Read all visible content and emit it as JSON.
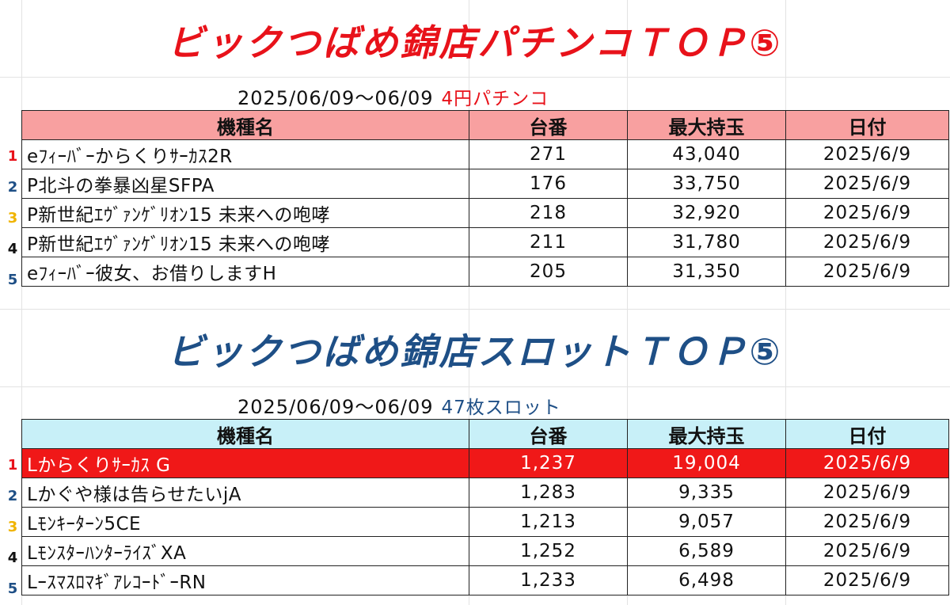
{
  "pachinko": {
    "title": "ビックつばめ錦店パチンコＴＯＰ⑤",
    "period": "2025/06/09～06/09",
    "kind": "4円パチンコ",
    "headers": [
      "機種名",
      "台番",
      "最大持玉",
      "日付"
    ],
    "rank_colors": [
      "#e8121a",
      "#1e4f86",
      "#f0b400",
      "#111111",
      "#1e4f86"
    ],
    "rows": [
      {
        "rank": "1",
        "name": "eﾌｨｰﾊﾞｰからくりｻｰｶｽ2R",
        "number": "271",
        "balls": "43,040",
        "date": "2025/6/9"
      },
      {
        "rank": "2",
        "name": "P北斗の拳暴凶星SFPA",
        "number": "176",
        "balls": "33,750",
        "date": "2025/6/9"
      },
      {
        "rank": "3",
        "name": "P新世紀ｴｳﾞｧﾝｹﾞﾘｵﾝ15 未来への咆哮",
        "number": "218",
        "balls": "32,920",
        "date": "2025/6/9"
      },
      {
        "rank": "4",
        "name": "P新世紀ｴｳﾞｧﾝｹﾞﾘｵﾝ15 未来への咆哮",
        "number": "211",
        "balls": "31,780",
        "date": "2025/6/9"
      },
      {
        "rank": "5",
        "name": "eﾌｨｰﾊﾞｰ彼女、お借りしますH",
        "number": "205",
        "balls": "31,350",
        "date": "2025/6/9"
      }
    ]
  },
  "slot": {
    "title": "ビックつばめ錦店スロットＴＯＰ⑤",
    "period": "2025/06/09～06/09",
    "kind": "47枚スロット",
    "headers": [
      "機種名",
      "台番",
      "最大持玉",
      "日付"
    ],
    "rank_colors": [
      "#e8121a",
      "#1e4f86",
      "#f0b400",
      "#111111",
      "#1e4f86"
    ],
    "rows": [
      {
        "rank": "1",
        "name": "Lからくりｻｰｶｽ G",
        "number": "1,237",
        "balls": "19,004",
        "date": "2025/6/9"
      },
      {
        "rank": "2",
        "name": "Lかぐや様は告らせたいjA",
        "number": "1,283",
        "balls": "9,335",
        "date": "2025/6/9"
      },
      {
        "rank": "3",
        "name": "Lﾓﾝｷｰﾀｰﾝ5CE",
        "number": "1,213",
        "balls": "9,057",
        "date": "2025/6/9"
      },
      {
        "rank": "4",
        "name": "LﾓﾝｽﾀｰﾊﾝﾀｰﾗｲｽﾞXA",
        "number": "1,252",
        "balls": "6,589",
        "date": "2025/6/9"
      },
      {
        "rank": "5",
        "name": "LｰｽﾏｽﾛﾏｷﾞｱﾚｺｰﾄﾞｰRN",
        "number": "1,233",
        "balls": "6,498",
        "date": "2025/6/9"
      }
    ]
  }
}
